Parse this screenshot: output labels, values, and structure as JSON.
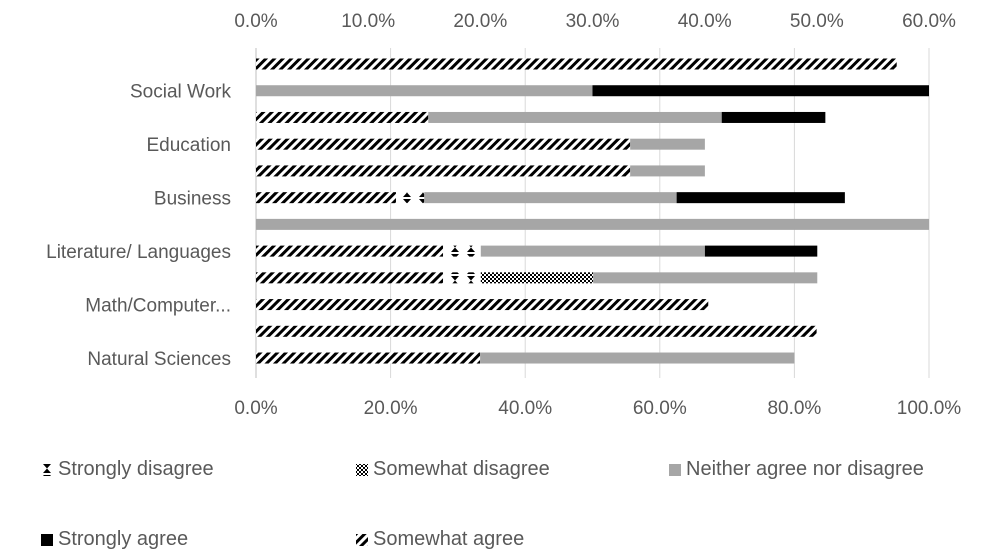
{
  "chart_data": {
    "type": "bar",
    "orientation": "horizontal",
    "stacked": true,
    "categories": [
      "",
      "Social Work",
      "",
      "Education",
      "",
      "Business",
      "",
      "Literature/ Languages",
      "",
      "Math/Computer...",
      "",
      "Natural Sciences"
    ],
    "top_axis_ticks": [
      "0.0%",
      "10.0%",
      "20.0%",
      "30.0%",
      "40.0%",
      "50.0%",
      "60.0%"
    ],
    "bottom_axis_ticks": [
      "0.0%",
      "20.0%",
      "40.0%",
      "60.0%",
      "80.0%",
      "100.0%"
    ],
    "xlim": [
      0,
      100
    ],
    "grid": true,
    "legend_position": "bottom",
    "series": [
      {
        "name": "Somewhat agree",
        "pattern": "diagonal-stripes",
        "color": "#000000",
        "values": [
          95.2,
          0,
          25.6,
          55.6,
          55.6,
          20.8,
          0,
          27.8,
          27.8,
          67.2,
          83.3,
          33.3
        ]
      },
      {
        "name": "Strongly disagree",
        "pattern": "hourglass",
        "color": "#000000",
        "values": [
          0,
          0,
          0,
          0,
          0,
          4.2,
          0,
          5.6,
          5.6,
          0,
          0,
          0
        ]
      },
      {
        "name": "Somewhat disagree",
        "pattern": "checker",
        "color": "#000000",
        "values": [
          0,
          0,
          0,
          0,
          0,
          0,
          0,
          0,
          16.7,
          0,
          0,
          0
        ]
      },
      {
        "name": "Neither agree nor disagree",
        "pattern": "solid",
        "color": "#a6a6a6",
        "values": [
          0,
          50,
          43.6,
          11.1,
          11.1,
          37.5,
          100,
          33.3,
          33.3,
          0,
          0,
          46.7
        ]
      },
      {
        "name": "Strongly agree",
        "pattern": "solid",
        "color": "#000000",
        "values": [
          0,
          50,
          15.4,
          0,
          0,
          25,
          0,
          16.7,
          0,
          0,
          0,
          0
        ]
      }
    ],
    "legend_order": [
      1,
      2,
      3,
      4,
      0
    ]
  }
}
